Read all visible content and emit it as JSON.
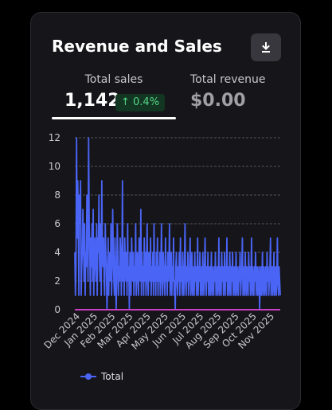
{
  "card": {
    "title": "Revenue and Sales",
    "download_icon": "download-icon"
  },
  "metrics": {
    "sales_label": "Total sales",
    "sales_value": "1,142",
    "sales_delta": "↑ 0.4%",
    "revenue_label": "Total revenue",
    "revenue_value": "$0.00"
  },
  "colors": {
    "series_total": "#4a64f5",
    "baseline": "#cc3fc0",
    "delta_positive": "#56d68a"
  },
  "chart_data": {
    "type": "line",
    "ylim": [
      0,
      12
    ],
    "yticks": [
      0,
      2,
      4,
      6,
      8,
      10,
      12
    ],
    "grid": true,
    "legend_position": "bottom",
    "xticks": [
      "Dec 2024",
      "Jan 2025",
      "Feb 2025",
      "Mar 2025",
      "Apr 2025",
      "May 2025",
      "Jun 2025",
      "Jul 2025",
      "Aug 2025",
      "Sep 2025",
      "Oct 2025",
      "Nov 2025"
    ],
    "series": [
      {
        "name": "Total",
        "color": "#4a64f5",
        "values": [
          4,
          1,
          3,
          12,
          5,
          9,
          7,
          1,
          8,
          6,
          9,
          1,
          3,
          4,
          7,
          5,
          2,
          6,
          1,
          4,
          3,
          8,
          5,
          2,
          12,
          6,
          4,
          1,
          5,
          3,
          6,
          2,
          7,
          1,
          4,
          5,
          3,
          2,
          6,
          1,
          5,
          4,
          8,
          3,
          2,
          6,
          1,
          9,
          4,
          3,
          5,
          2,
          1,
          6,
          4,
          3,
          0,
          2,
          5,
          1,
          3,
          4,
          2,
          6,
          1,
          3,
          7,
          4,
          2,
          1,
          5,
          3,
          0,
          2,
          6,
          4,
          1,
          3,
          2,
          5,
          4,
          1,
          3,
          9,
          2,
          4,
          1,
          5,
          3,
          2,
          4,
          1,
          6,
          2,
          3,
          0,
          4,
          2,
          1,
          5,
          3,
          2,
          4,
          1,
          3,
          2,
          6,
          1,
          3,
          4,
          2,
          1,
          5,
          3,
          2,
          7,
          1,
          4,
          2,
          3,
          1,
          5,
          2,
          4,
          1,
          3,
          6,
          2,
          1,
          4,
          3,
          2,
          5,
          1,
          3,
          2,
          4,
          1,
          6,
          2,
          3,
          1,
          4,
          2,
          5,
          1,
          3,
          2,
          4,
          1,
          3,
          6,
          2,
          1,
          4,
          3,
          2,
          1,
          5,
          2,
          3,
          1,
          4,
          2,
          3,
          6,
          1,
          2,
          4,
          1,
          3,
          2,
          5,
          1,
          2,
          0,
          3,
          4,
          2,
          1,
          3,
          2,
          4,
          1,
          5,
          2,
          3,
          1,
          4,
          2,
          1,
          3,
          6,
          2,
          1,
          3,
          2,
          4,
          1,
          2,
          3,
          5,
          1,
          2,
          4,
          1,
          3,
          2,
          1,
          4,
          2,
          3,
          1,
          2,
          5,
          1,
          3,
          2,
          4,
          1,
          2,
          3,
          1,
          4,
          2,
          1,
          3,
          5,
          2,
          1,
          3,
          2,
          4,
          1,
          2,
          3,
          1,
          2,
          4,
          1,
          3,
          2,
          1,
          3,
          2,
          4,
          1,
          2,
          3,
          1,
          2,
          5,
          1,
          3,
          2,
          1,
          4,
          2,
          3,
          1,
          2,
          4,
          1,
          3,
          2,
          5,
          1,
          2,
          3,
          1,
          4,
          2,
          1,
          3,
          2,
          4,
          1,
          2,
          3,
          1,
          2,
          4,
          1,
          3,
          2,
          1,
          3,
          2,
          4,
          1,
          2,
          3,
          5,
          1,
          2,
          3,
          1,
          4,
          2,
          1,
          3,
          2,
          1,
          4,
          2,
          3,
          1,
          2,
          5,
          1,
          3,
          2,
          1,
          3,
          2,
          4,
          1,
          2,
          3,
          1,
          2,
          3,
          0,
          2,
          3,
          1,
          2,
          4,
          1,
          3,
          2,
          1,
          3,
          2,
          1,
          4,
          2,
          3,
          1,
          2,
          3,
          5,
          1,
          2,
          3,
          1,
          2,
          4,
          1,
          2,
          3,
          1,
          2,
          5,
          2,
          1,
          3,
          2,
          1
        ]
      },
      {
        "name": "baseline",
        "color": "#cc3fc0",
        "values": [
          0,
          0
        ]
      }
    ]
  },
  "legend": {
    "total_label": "Total"
  }
}
